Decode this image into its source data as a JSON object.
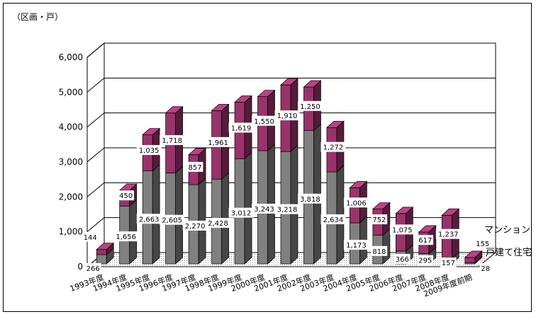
{
  "unit_label": "（区画・戸）",
  "colors": {
    "mansion": "#99336a",
    "house": "#808080",
    "grid": "#000000",
    "floor": "#e6e6e6"
  },
  "chart_data": {
    "type": "bar",
    "stacked": true,
    "three_d": true,
    "ylim": [
      0,
      6000
    ],
    "yticks": [
      "0",
      "1,000",
      "2,000",
      "3,000",
      "4,000",
      "5,000",
      "6,000"
    ],
    "ytick_values": [
      0,
      1000,
      2000,
      3000,
      4000,
      5000,
      6000
    ],
    "grid": true,
    "legend_placement": "right",
    "categories": [
      "1993年度",
      "1994年度",
      "1995年度",
      "1996年度",
      "1997年度",
      "1998年度",
      "1999年度",
      "2000年度",
      "2001年度",
      "2002年度",
      "2003年度",
      "2004年度",
      "2005年度",
      "2006年度",
      "2007年度",
      "2008年度",
      "2009年度前期"
    ],
    "series": [
      {
        "name": "戸建て住宅",
        "values": [
          266,
          1656,
          2663,
          2605,
          2270,
          2428,
          3012,
          3243,
          3218,
          3818,
          2634,
          1173,
          818,
          366,
          295,
          157,
          28
        ],
        "labels": [
          "266",
          "1,656",
          "2,663",
          "2,605",
          "2,270",
          "2,428",
          "3,012",
          "3,243",
          "3,218",
          "3,818",
          "2,634",
          "1,173",
          "818",
          "366",
          "295",
          "157",
          "28"
        ]
      },
      {
        "name": "マンション",
        "values": [
          144,
          450,
          1035,
          1718,
          857,
          1961,
          1619,
          1550,
          1910,
          1250,
          1272,
          1006,
          752,
          1075,
          617,
          1237,
          155
        ],
        "labels": [
          "144",
          "450",
          "1,035",
          "1,718",
          "857",
          "1,961",
          "1,619",
          "1,550",
          "1,910",
          "1,250",
          "1,272",
          "1,006",
          "752",
          "1,075",
          "617",
          "1,237",
          "155"
        ]
      }
    ]
  }
}
